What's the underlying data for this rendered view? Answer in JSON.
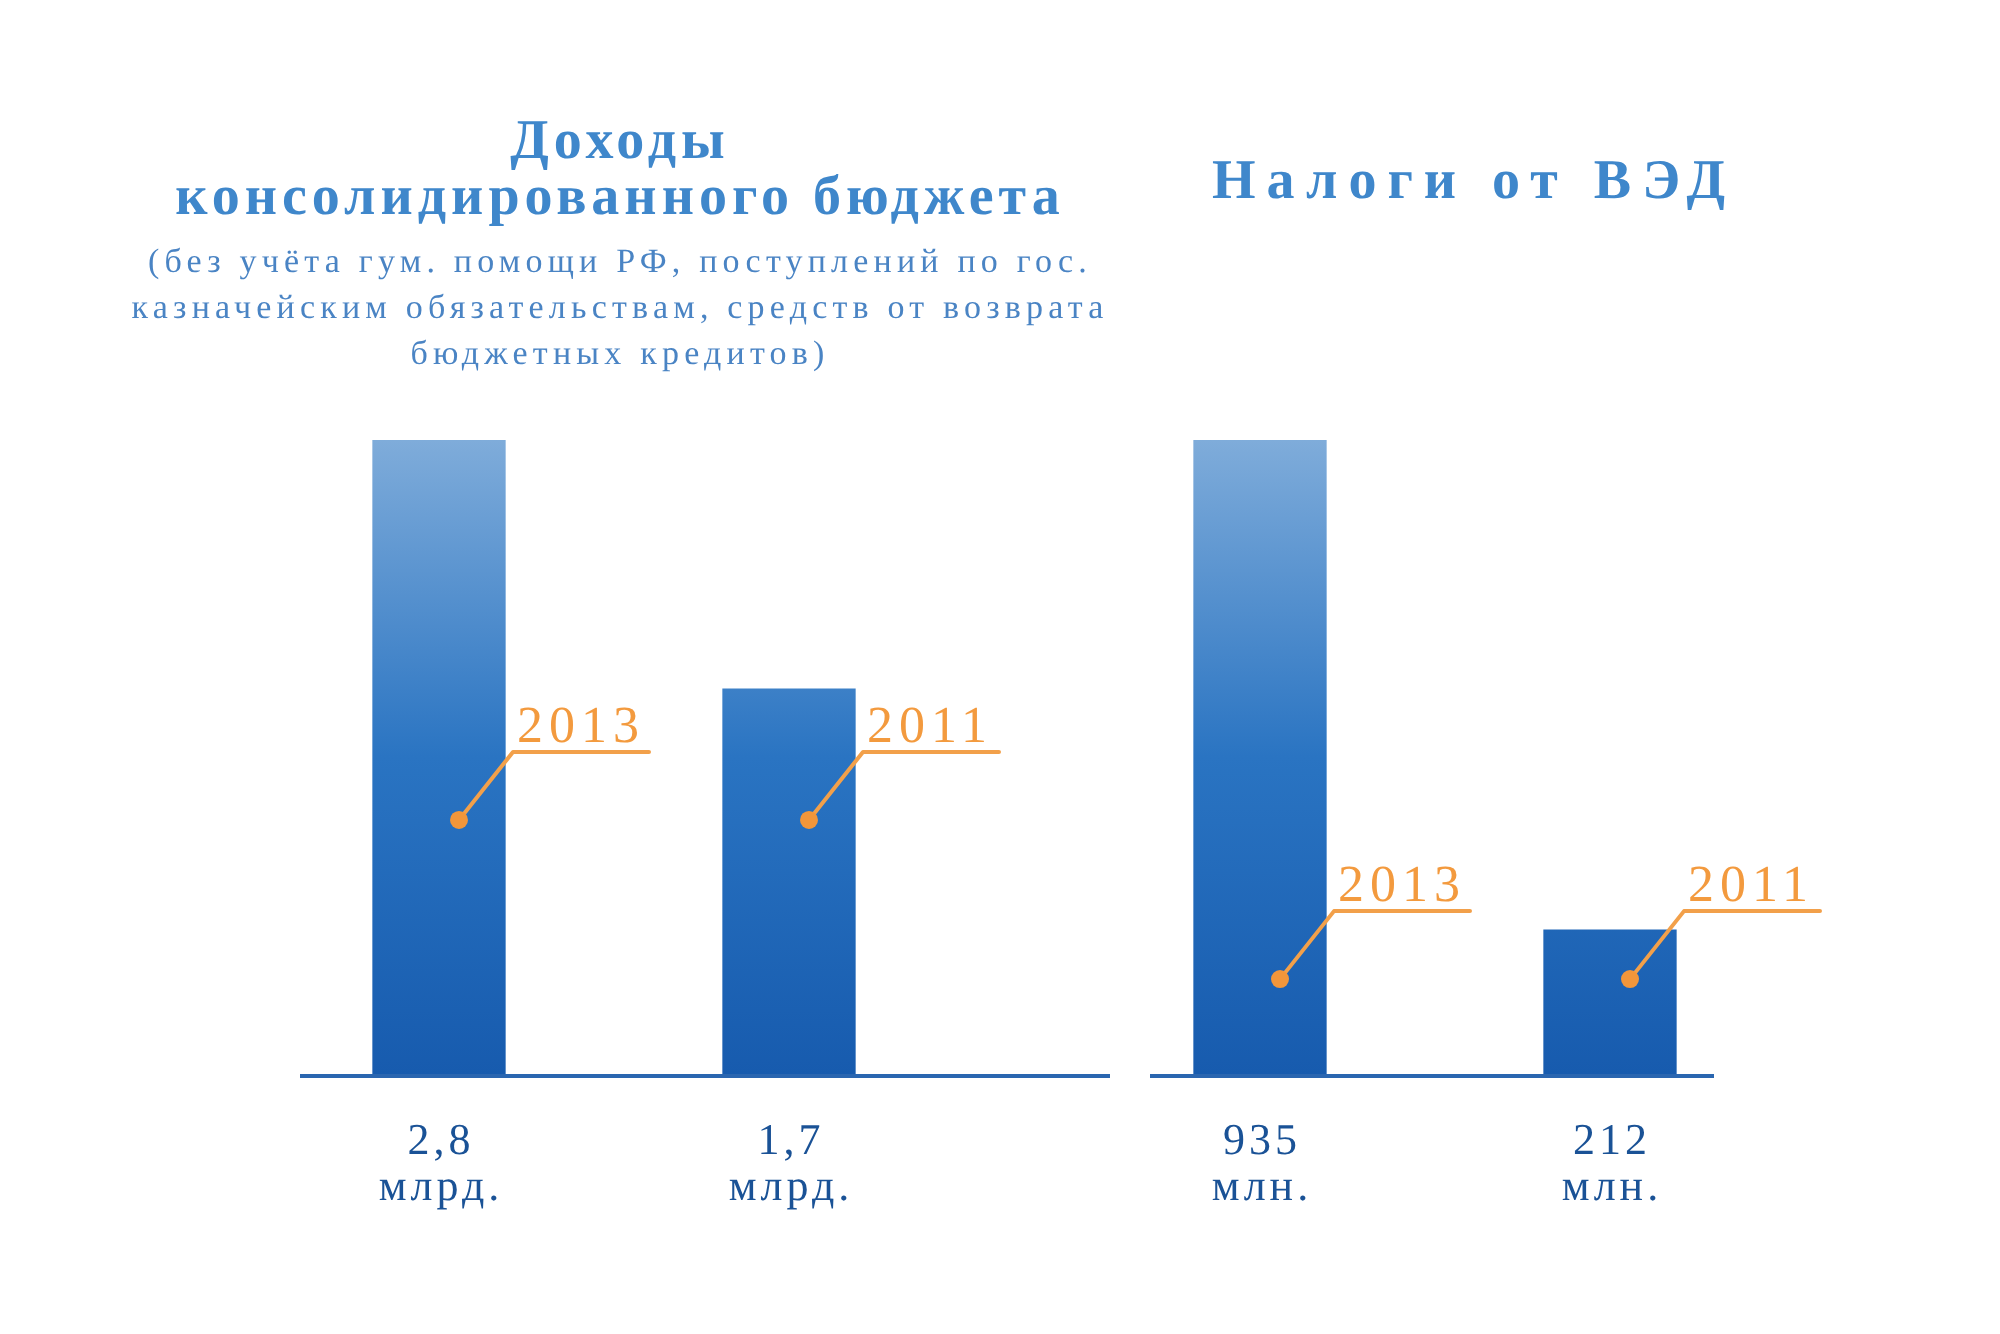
{
  "chart_data": [
    {
      "type": "bar",
      "title": "Доходы\nконсолидированного бюджета",
      "subtitle": "(без учёта гум. помощи РФ, поступлений по гос. казначейским обязательствам, средств от возврата бюджетных кредитов)",
      "categories": [
        "2013",
        "2011"
      ],
      "values": [
        2.8,
        1.7
      ],
      "color": "#2a74c2",
      "value_labels": [
        "2,8 млрд.",
        "1,7 млрд."
      ],
      "tick_labels": "x"
    },
    {
      "type": "bar",
      "title": "Налоги от ВЭД",
      "categories": [
        "2013",
        "2011"
      ],
      "values": [
        935,
        212
      ],
      "color": "#2a74c2",
      "value_labels": [
        "935 млн.",
        "212 млн."
      ],
      "tick_labels": "x"
    }
  ]
}
